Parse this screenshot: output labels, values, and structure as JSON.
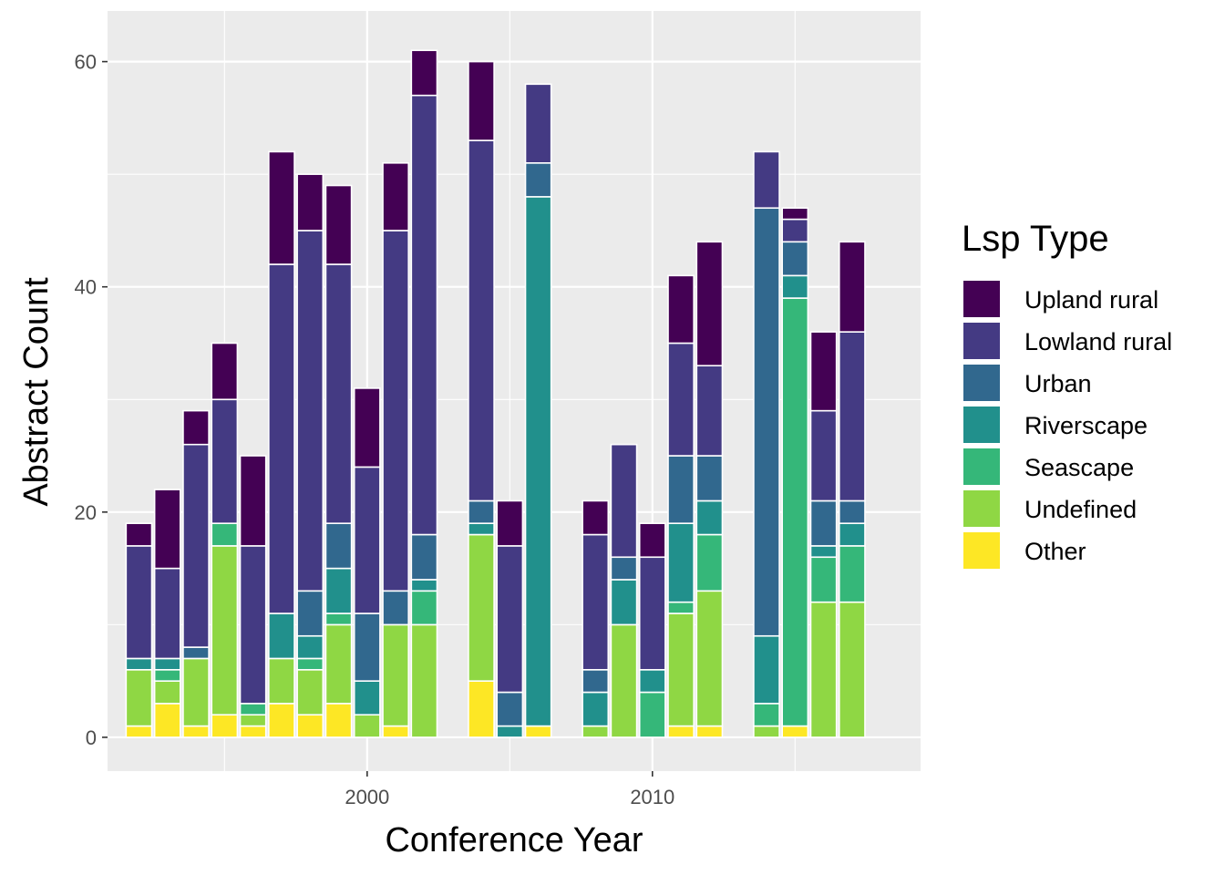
{
  "chart_data": {
    "type": "bar",
    "stacked": true,
    "xlabel": "Conference Year",
    "ylabel": "Abstract Count",
    "xlim": [
      1990.9,
      2019.4
    ],
    "ylim": [
      -3,
      64.5
    ],
    "x_ticks": [
      2000,
      2010
    ],
    "y_ticks": [
      0,
      20,
      40,
      60
    ],
    "grid": true,
    "legend": {
      "title": "Lsp Type",
      "position": "right"
    },
    "series": [
      {
        "name": "Other",
        "color": "#FDE725"
      },
      {
        "name": "Undefined",
        "color": "#8FD744"
      },
      {
        "name": "Seascape",
        "color": "#35B779"
      },
      {
        "name": "Riverscape",
        "color": "#21908C"
      },
      {
        "name": "Urban",
        "color": "#31688E"
      },
      {
        "name": "Lowland rural",
        "color": "#443A83"
      },
      {
        "name": "Upland rural",
        "color": "#440154"
      }
    ],
    "legend_order": [
      "Upland rural",
      "Lowland rural",
      "Urban",
      "Riverscape",
      "Seascape",
      "Undefined",
      "Other"
    ],
    "data": [
      {
        "year": 1992,
        "values": [
          1,
          5,
          0,
          1,
          0,
          10,
          2
        ]
      },
      {
        "year": 1993,
        "values": [
          3,
          2,
          1,
          1,
          0,
          8,
          7
        ]
      },
      {
        "year": 1994,
        "values": [
          1,
          6,
          0,
          0,
          1,
          18,
          3
        ]
      },
      {
        "year": 1995,
        "values": [
          2,
          15,
          2,
          0,
          0,
          11,
          5
        ]
      },
      {
        "year": 1996,
        "values": [
          1,
          1,
          1,
          0,
          0,
          14,
          8
        ]
      },
      {
        "year": 1997,
        "values": [
          3,
          4,
          0,
          4,
          0,
          31,
          10
        ]
      },
      {
        "year": 1998,
        "values": [
          2,
          4,
          1,
          2,
          4,
          32,
          5
        ]
      },
      {
        "year": 1999,
        "values": [
          3,
          7,
          1,
          4,
          4,
          23,
          7
        ]
      },
      {
        "year": 2000,
        "values": [
          0,
          2,
          0,
          3,
          6,
          13,
          7
        ]
      },
      {
        "year": 2001,
        "values": [
          1,
          9,
          0,
          0,
          3,
          32,
          6
        ]
      },
      {
        "year": 2002,
        "values": [
          0,
          10,
          3,
          1,
          4,
          39,
          4
        ]
      },
      {
        "year": 2004,
        "values": [
          5,
          13,
          0,
          1,
          2,
          32,
          7
        ]
      },
      {
        "year": 2005,
        "values": [
          0,
          0,
          0,
          1,
          3,
          13,
          4
        ]
      },
      {
        "year": 2006,
        "values": [
          1,
          0,
          0,
          47,
          3,
          7,
          0
        ]
      },
      {
        "year": 2008,
        "values": [
          0,
          1,
          0,
          3,
          2,
          12,
          3
        ]
      },
      {
        "year": 2009,
        "values": [
          0,
          10,
          0,
          4,
          2,
          10,
          0
        ]
      },
      {
        "year": 2010,
        "values": [
          0,
          0,
          4,
          2,
          0,
          10,
          3
        ]
      },
      {
        "year": 2011,
        "values": [
          1,
          10,
          1,
          7,
          6,
          10,
          6
        ]
      },
      {
        "year": 2012,
        "values": [
          1,
          12,
          5,
          3,
          4,
          8,
          11
        ]
      },
      {
        "year": 2014,
        "values": [
          0,
          1,
          2,
          6,
          38,
          5,
          0
        ]
      },
      {
        "year": 2015,
        "values": [
          1,
          0,
          38,
          2,
          3,
          2,
          1
        ]
      },
      {
        "year": 2016,
        "values": [
          0,
          12,
          4,
          1,
          4,
          8,
          7
        ]
      },
      {
        "year": 2017,
        "values": [
          0,
          12,
          5,
          2,
          2,
          15,
          8
        ]
      }
    ]
  }
}
